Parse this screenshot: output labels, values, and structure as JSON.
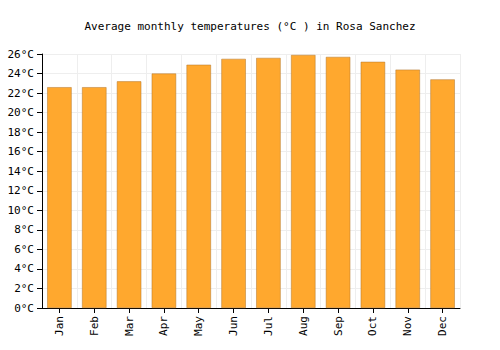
{
  "chart_data": {
    "type": "bar",
    "title": "Average monthly temperatures (°C ) in Rosa Sanchez",
    "categories": [
      "Jan",
      "Feb",
      "Mar",
      "Apr",
      "May",
      "Jun",
      "Jul",
      "Aug",
      "Sep",
      "Oct",
      "Nov",
      "Dec"
    ],
    "values": [
      22.6,
      22.6,
      23.2,
      24.0,
      24.9,
      25.5,
      25.6,
      25.9,
      25.7,
      25.2,
      24.4,
      23.4
    ],
    "color": "#ffa82e",
    "ylim": [
      0,
      26
    ],
    "yticks": [
      {
        "value": 0,
        "label": "0°C"
      },
      {
        "value": 2,
        "label": "2°C"
      },
      {
        "value": 4,
        "label": "4°C"
      },
      {
        "value": 6,
        "label": "6°C"
      },
      {
        "value": 8,
        "label": "8°C"
      },
      {
        "value": 10,
        "label": "10°C"
      },
      {
        "value": 12,
        "label": "12°C"
      },
      {
        "value": 14,
        "label": "14°C"
      },
      {
        "value": 16,
        "label": "16°C"
      },
      {
        "value": 18,
        "label": "18°C"
      },
      {
        "value": 20,
        "label": "20°C"
      },
      {
        "value": 22,
        "label": "22°C"
      },
      {
        "value": 24,
        "label": "24°C"
      },
      {
        "value": 26,
        "label": "26°C"
      }
    ],
    "grid": true
  }
}
